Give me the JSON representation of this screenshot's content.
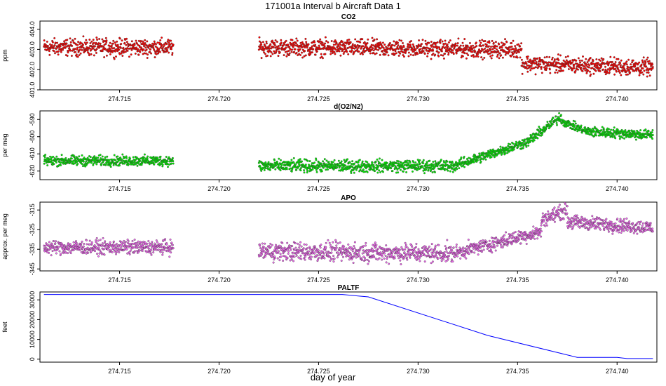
{
  "figure": {
    "title": "171001a   Interval b Aircraft Data 1",
    "xlabel": "day of year"
  },
  "chart_data": [
    {
      "type": "scatter",
      "title": "CO2",
      "ylabel": "ppm",
      "color": "#ff0000",
      "xlim": [
        274.711,
        274.742
      ],
      "ylim": [
        401.0,
        404.4
      ],
      "x_ticks": [
        "274.715",
        "274.720",
        "274.725",
        "274.730",
        "274.735",
        "274.740"
      ],
      "y_ticks": [
        "401.0",
        "402.0",
        "403.0",
        "404.0"
      ],
      "segments": [
        {
          "x_start": 274.7112,
          "x_end": 274.7177,
          "y_start": 403.1,
          "y_end": 403.1,
          "spread": 0.35
        },
        {
          "x_start": 274.722,
          "x_end": 274.7352,
          "y_start": 403.1,
          "y_end": 403.0,
          "spread": 0.35
        },
        {
          "x_start": 274.7352,
          "x_end": 274.7418,
          "y_start": 402.3,
          "y_end": 402.1,
          "spread": 0.35
        }
      ]
    },
    {
      "type": "scatter",
      "title": "d(O2/N2)",
      "ylabel": "per meg",
      "color": "#00ee00",
      "xlim": [
        274.711,
        274.742
      ],
      "ylim": [
        -625,
        -585
      ],
      "x_ticks": [
        "274.715",
        "274.720",
        "274.725",
        "274.730",
        "274.735",
        "274.740"
      ],
      "y_ticks": [
        "-620",
        "-610",
        "-600",
        "-590"
      ],
      "segments": [
        {
          "x_start": 274.7112,
          "x_end": 274.7177,
          "y_start": -614,
          "y_end": -614,
          "spread": 2.5
        },
        {
          "x_start": 274.722,
          "x_end": 274.7318,
          "y_start": -617,
          "y_end": -617,
          "spread": 3
        },
        {
          "x_start": 274.7318,
          "x_end": 274.7355,
          "y_start": -617,
          "y_end": -603,
          "spread": 2.5
        },
        {
          "x_start": 274.7355,
          "x_end": 274.7372,
          "y_start": -603,
          "y_end": -588,
          "spread": 2.5
        },
        {
          "x_start": 274.7372,
          "x_end": 274.7385,
          "y_start": -591,
          "y_end": -597,
          "spread": 2
        },
        {
          "x_start": 274.7385,
          "x_end": 274.7418,
          "y_start": -597,
          "y_end": -599,
          "spread": 2.5
        }
      ]
    },
    {
      "type": "scatter",
      "title": "APO",
      "ylabel": "approx. per meg",
      "color": "#ee66ee",
      "xlim": [
        274.711,
        274.742
      ],
      "ylim": [
        -346,
        -311
      ],
      "x_ticks": [
        "274.715",
        "274.720",
        "274.725",
        "274.730",
        "274.735",
        "274.740"
      ],
      "y_ticks": [
        "-345",
        "-335",
        "-325",
        "-315"
      ],
      "segments": [
        {
          "x_start": 274.7112,
          "x_end": 274.7177,
          "y_start": -334,
          "y_end": -334,
          "spread": 3
        },
        {
          "x_start": 274.722,
          "x_end": 274.7318,
          "y_start": -336,
          "y_end": -337,
          "spread": 4
        },
        {
          "x_start": 274.7318,
          "x_end": 274.7362,
          "y_start": -337,
          "y_end": -326,
          "spread": 3
        },
        {
          "x_start": 274.7362,
          "x_end": 274.7375,
          "y_start": -320,
          "y_end": -315,
          "spread": 3
        },
        {
          "x_start": 274.7375,
          "x_end": 274.7418,
          "y_start": -321,
          "y_end": -324,
          "spread": 3
        }
      ]
    },
    {
      "type": "line",
      "title": "PALTF",
      "ylabel": "feet",
      "color": "#0000ff",
      "xlim": [
        274.711,
        274.742
      ],
      "ylim": [
        -1500,
        34000
      ],
      "x_ticks": [
        "274.715",
        "274.720",
        "274.725",
        "274.730",
        "274.735",
        "274.740"
      ],
      "y_ticks": [
        "0",
        "10000",
        "20000",
        "30000"
      ],
      "x": [
        274.7112,
        274.7262,
        274.7275,
        274.7335,
        274.738,
        274.74,
        274.7405,
        274.7418
      ],
      "y": [
        32700,
        32700,
        31500,
        12000,
        900,
        900,
        300,
        300
      ]
    }
  ]
}
